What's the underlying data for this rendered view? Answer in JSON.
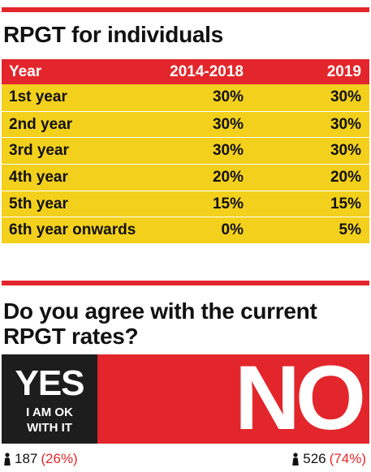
{
  "table_title": "RPGT for individuals",
  "poll_question": "Do you agree with the current RPGT rates?",
  "chart_data": {
    "type": "table",
    "columns": [
      "Year",
      "2014-2018",
      "2019"
    ],
    "rows": [
      [
        "1st year",
        "30%",
        "30%"
      ],
      [
        "2nd year",
        "30%",
        "30%"
      ],
      [
        "3rd year",
        "30%",
        "30%"
      ],
      [
        "4th year",
        "20%",
        "20%"
      ],
      [
        "5th year",
        "15%",
        "15%"
      ],
      [
        "6th year onwards",
        "0%",
        "5%"
      ]
    ]
  },
  "poll": {
    "yes_label": "YES",
    "yes_sub1": "I AM OK",
    "yes_sub2": "WITH IT",
    "no_label": "NO",
    "yes_votes": "187",
    "yes_pct": "(26%)",
    "no_votes": "526",
    "no_pct": "(74%)"
  },
  "colors": {
    "accent_red": "#e3262b",
    "row_yellow": "#f3d01c",
    "yes_black": "#1d1d1d"
  }
}
